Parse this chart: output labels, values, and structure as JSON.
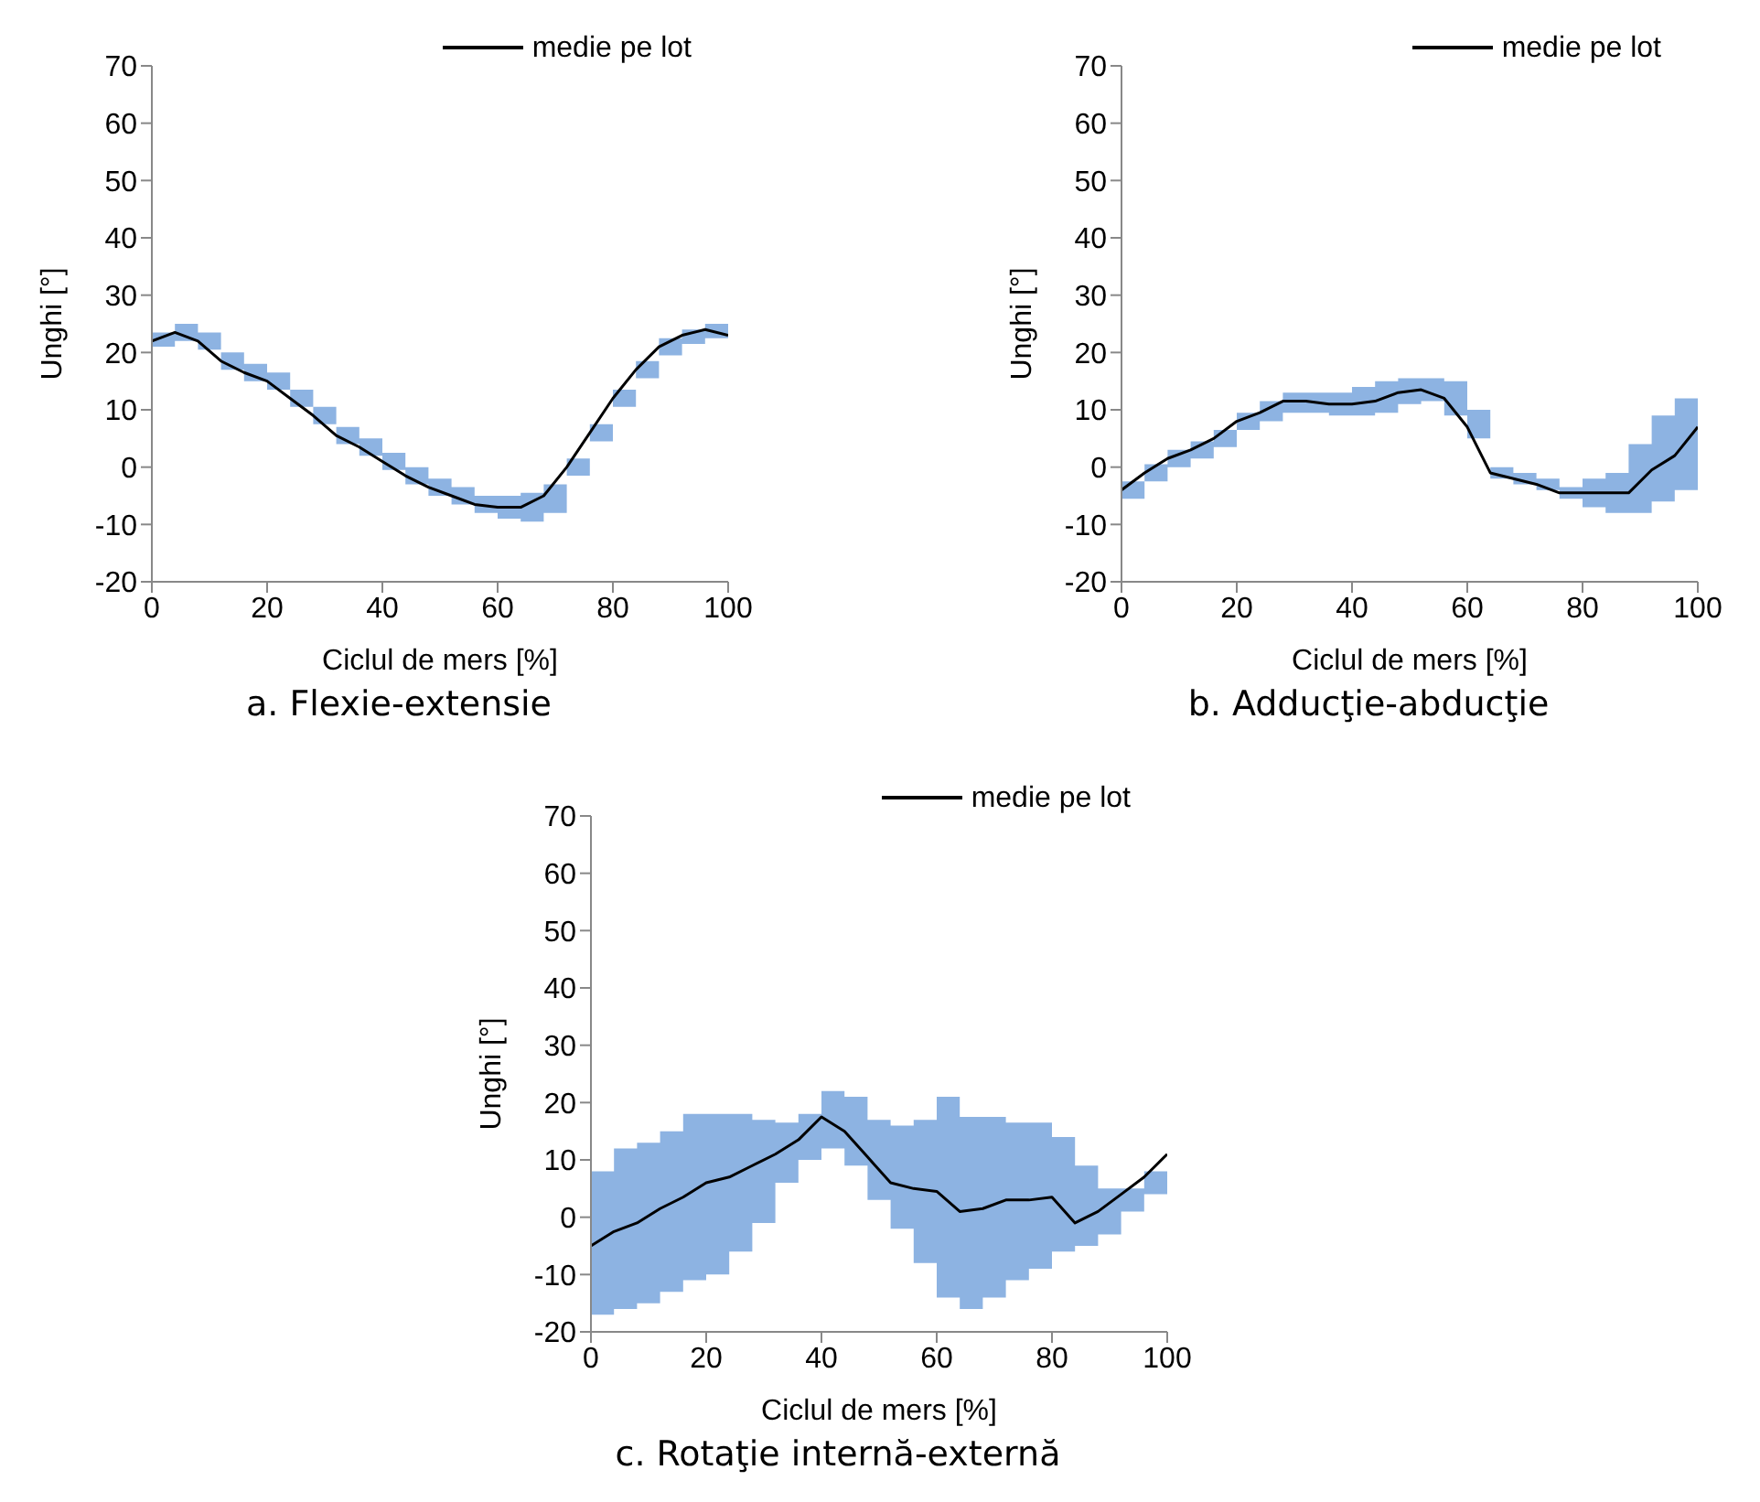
{
  "chart_data": [
    {
      "type": "line",
      "title": "a. Flexie-extensie",
      "xlabel": "Ciclul de mers [%]",
      "ylabel": "Unghi [°]",
      "x": [
        0,
        4,
        8,
        12,
        16,
        20,
        24,
        28,
        32,
        36,
        40,
        44,
        48,
        52,
        56,
        60,
        64,
        68,
        72,
        76,
        80,
        84,
        88,
        92,
        96,
        100
      ],
      "xlim": [
        0,
        100
      ],
      "xticks": [
        0,
        20,
        40,
        60,
        80,
        100
      ],
      "ylim": [
        -20,
        70
      ],
      "yticks": [
        -20,
        -10,
        0,
        10,
        20,
        30,
        40,
        50,
        60,
        70
      ],
      "legend": "top right",
      "marker": "none",
      "line_style": "solid",
      "series": [
        {
          "name": "medie pe lot",
          "color": "#000000",
          "values": [
            22,
            23.5,
            22,
            18.5,
            16.5,
            15,
            12,
            9,
            5.5,
            3.5,
            1,
            -1.5,
            -3.5,
            -5,
            -6.5,
            -7,
            -7,
            -5,
            0,
            6,
            12,
            17,
            21,
            23,
            24,
            23
          ],
          "lower": [
            21,
            22,
            20.5,
            17,
            15,
            13.5,
            10.5,
            7.5,
            4,
            2,
            -0.5,
            -3,
            -5,
            -6.5,
            -8,
            -9,
            -9.5,
            -8,
            -1.5,
            4.5,
            10.5,
            15.5,
            19.5,
            21.5,
            22.5,
            22.5
          ],
          "upper": [
            23.5,
            25,
            23.5,
            20,
            18,
            16.5,
            13.5,
            10.5,
            7,
            5,
            2.5,
            0,
            -2,
            -3.5,
            -5,
            -5,
            -4.5,
            -3,
            1.5,
            7.5,
            13.5,
            18.5,
            22.5,
            24,
            25,
            23
          ]
        }
      ]
    },
    {
      "type": "line",
      "title": "b. Adducţie-abducţie",
      "xlabel": "Ciclul de mers [%]",
      "ylabel": "Unghi [°]",
      "x": [
        0,
        4,
        8,
        12,
        16,
        20,
        24,
        28,
        32,
        36,
        40,
        44,
        48,
        52,
        56,
        60,
        64,
        68,
        72,
        76,
        80,
        84,
        88,
        92,
        96,
        100
      ],
      "xlim": [
        0,
        100
      ],
      "xticks": [
        0,
        20,
        40,
        60,
        80,
        100
      ],
      "ylim": [
        -20,
        70
      ],
      "yticks": [
        -20,
        -10,
        0,
        10,
        20,
        30,
        40,
        50,
        60,
        70
      ],
      "legend": "top right",
      "marker": "none",
      "line_style": "solid",
      "series": [
        {
          "name": "medie pe lot",
          "color": "#000000",
          "values": [
            -4,
            -1,
            1.5,
            3,
            5,
            8,
            9.5,
            11.5,
            11.5,
            11,
            11,
            11.5,
            13,
            13.5,
            12,
            7,
            -1,
            -2,
            -3,
            -4.5,
            -4.5,
            -4.5,
            -4.5,
            -0.5,
            2,
            7
          ],
          "lower": [
            -5.5,
            -2.5,
            0,
            1.5,
            3.5,
            6.5,
            8,
            9.5,
            9.5,
            9,
            9,
            9.5,
            11,
            11.5,
            9,
            5,
            -2,
            -3,
            -4,
            -5.5,
            -7,
            -8,
            -8,
            -6,
            -4,
            2
          ],
          "upper": [
            -2.5,
            0.5,
            3,
            4.5,
            6.5,
            9.5,
            11.5,
            13,
            13,
            13,
            14,
            15,
            15.5,
            15.5,
            15,
            10,
            0,
            -1,
            -2,
            -3.5,
            -2,
            -1,
            4,
            9,
            12,
            14
          ]
        }
      ]
    },
    {
      "type": "line",
      "title": "c. Rotaţie internă-externă",
      "xlabel": "Ciclul de mers [%]",
      "ylabel": "Unghi [°]",
      "x": [
        0,
        4,
        8,
        12,
        16,
        20,
        24,
        28,
        32,
        36,
        40,
        44,
        48,
        52,
        56,
        60,
        64,
        68,
        72,
        76,
        80,
        84,
        88,
        92,
        96,
        100
      ],
      "xlim": [
        0,
        100
      ],
      "xticks": [
        0,
        20,
        40,
        60,
        80,
        100
      ],
      "ylim": [
        -20,
        70
      ],
      "yticks": [
        -20,
        -10,
        0,
        10,
        20,
        30,
        40,
        50,
        60,
        70
      ],
      "legend": "top right",
      "marker": "none",
      "line_style": "solid",
      "series": [
        {
          "name": "medie pe lot",
          "color": "#000000",
          "values": [
            -5,
            -2.5,
            -1,
            1.5,
            3.5,
            6,
            7,
            9,
            11,
            13.5,
            17.5,
            15,
            10.5,
            6,
            5,
            4.5,
            1,
            1.5,
            3,
            3,
            3.5,
            -1,
            1,
            4,
            7,
            11
          ],
          "lower": [
            -17,
            -16,
            -15,
            -13,
            -11,
            -10,
            -6,
            -1,
            6,
            10,
            12,
            9,
            3,
            -2,
            -8,
            -14,
            -16,
            -14,
            -11,
            -9,
            -6,
            -5,
            -3,
            1,
            4,
            9
          ],
          "upper": [
            8,
            12,
            13,
            15,
            18,
            18,
            18,
            17,
            16.5,
            18,
            22,
            21,
            17,
            16,
            17,
            21,
            17.5,
            17.5,
            16.5,
            16.5,
            14,
            9,
            5,
            5,
            8,
            12
          ]
        }
      ]
    }
  ]
}
